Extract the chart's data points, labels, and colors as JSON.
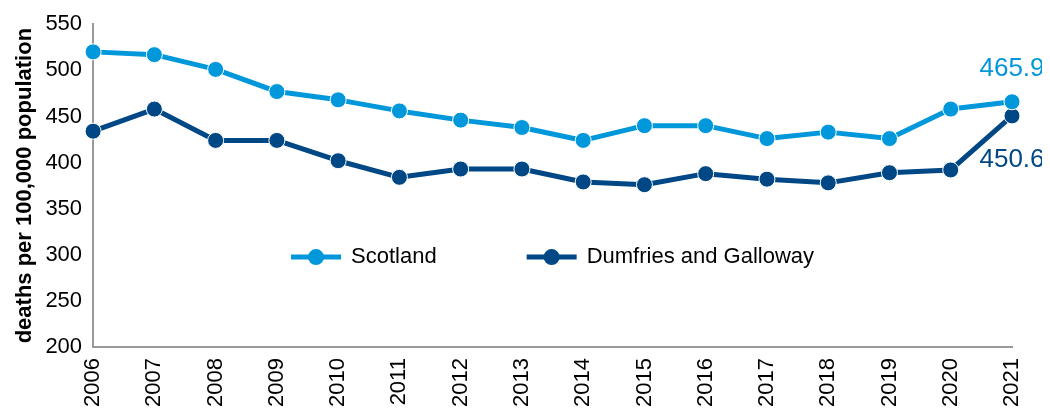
{
  "chart_data": {
    "type": "line",
    "ylabel": "deaths per 100,000 population",
    "categories": [
      "2006",
      "2007",
      "2008",
      "2009",
      "2010",
      "2011",
      "2012",
      "2013",
      "2014",
      "2015",
      "2016",
      "2017",
      "2018",
      "2019",
      "2020",
      "2021"
    ],
    "series": [
      {
        "name": "Scotland",
        "color": "#0098da",
        "values": [
          520,
          517,
          501,
          477,
          468,
          456,
          446,
          438,
          424,
          440,
          440,
          426,
          433,
          426,
          458,
          465.9
        ],
        "value_labels": [
          null,
          null,
          null,
          null,
          null,
          null,
          null,
          null,
          null,
          null,
          null,
          null,
          null,
          null,
          null,
          "465.9"
        ]
      },
      {
        "name": "Dumfries and Galloway",
        "color": "#004785",
        "values": [
          434,
          458,
          424,
          424,
          402,
          384,
          393,
          393,
          379,
          376,
          388,
          382,
          378,
          389,
          392,
          450.6
        ],
        "value_labels": [
          null,
          null,
          null,
          null,
          null,
          null,
          null,
          null,
          null,
          null,
          null,
          null,
          null,
          null,
          null,
          "450.6"
        ]
      }
    ],
    "ylim": [
      200,
      550
    ],
    "yticks": [
      200,
      250,
      300,
      350,
      400,
      450,
      500,
      550
    ],
    "grid": false,
    "legend": "bottom",
    "marker": "circle",
    "line_style": "solid"
  }
}
